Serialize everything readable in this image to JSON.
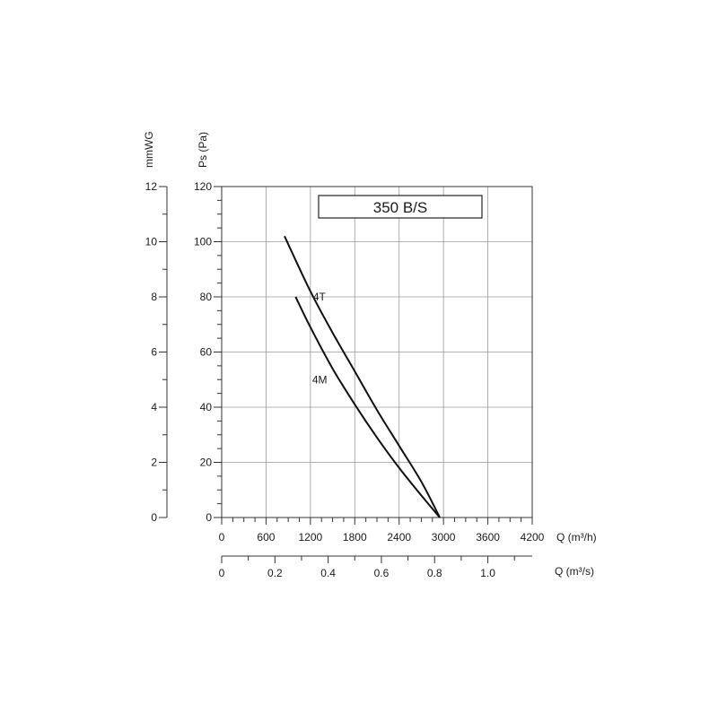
{
  "chart_data": {
    "type": "line",
    "title": "350 B/S",
    "x_axis": {
      "label": "Q (m³/h)",
      "range": [
        0,
        4200
      ],
      "ticks": [
        "0",
        "600",
        "1200",
        "1800",
        "2400",
        "3000",
        "3600",
        "4200"
      ]
    },
    "x2_axis": {
      "label": "Q (m³/s)",
      "range": [
        0,
        1.1667
      ],
      "ticks": [
        "0",
        "0.2",
        "0.4",
        "0.6",
        "0.8",
        "1.0"
      ]
    },
    "y_axis": {
      "label": "Ps (Pa)",
      "range": [
        0,
        120
      ],
      "ticks": [
        "0",
        "20",
        "40",
        "60",
        "80",
        "100",
        "120"
      ]
    },
    "y2_axis": {
      "label": "mmWG",
      "range": [
        0,
        12
      ],
      "ticks": [
        "0",
        "2",
        "4",
        "6",
        "8",
        "10",
        "12"
      ]
    },
    "grid": true,
    "series": [
      {
        "name": "4T",
        "points": [
          [
            850,
            102
          ],
          [
            1200,
            82
          ],
          [
            1500,
            67
          ],
          [
            1800,
            53
          ],
          [
            2100,
            39
          ],
          [
            2400,
            26
          ],
          [
            2700,
            13
          ],
          [
            2950,
            0
          ]
        ]
      },
      {
        "name": "4M",
        "points": [
          [
            1000,
            80
          ],
          [
            1200,
            69
          ],
          [
            1500,
            54
          ],
          [
            1800,
            41
          ],
          [
            2100,
            29
          ],
          [
            2400,
            18
          ],
          [
            2700,
            8
          ],
          [
            2950,
            0
          ]
        ]
      }
    ]
  }
}
